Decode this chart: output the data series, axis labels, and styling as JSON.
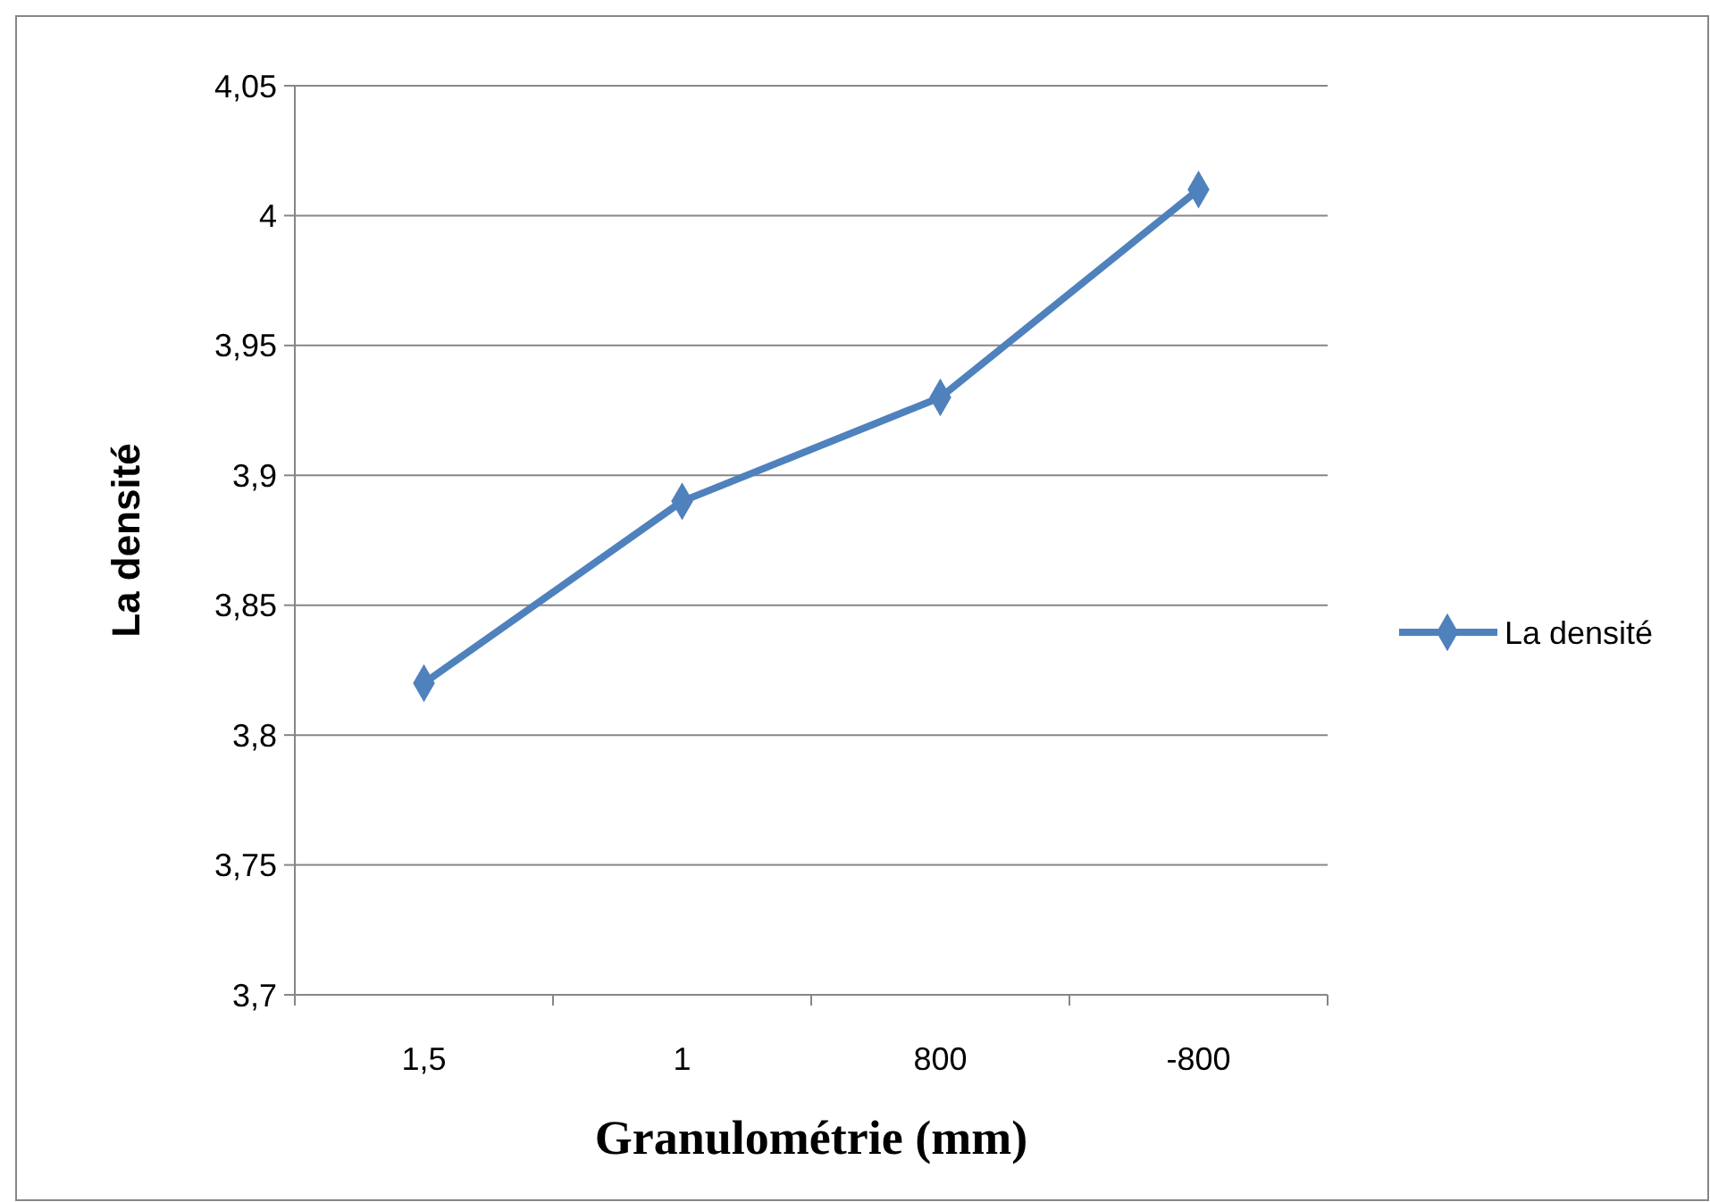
{
  "chart_data": {
    "type": "line",
    "xlabel": "Granulométrie (mm)",
    "ylabel": "La densité",
    "categories": [
      "1,5",
      "1",
      "800",
      "-800"
    ],
    "series": [
      {
        "name": "La densité",
        "color": "#4f81bd",
        "values": [
          3.82,
          3.89,
          3.93,
          4.01
        ]
      }
    ],
    "ylim": [
      3.7,
      4.05
    ],
    "yticks": [
      {
        "value": 3.7,
        "label": "3,7"
      },
      {
        "value": 3.75,
        "label": "3,75"
      },
      {
        "value": 3.8,
        "label": "3,8"
      },
      {
        "value": 3.85,
        "label": "3,85"
      },
      {
        "value": 3.9,
        "label": "3,9"
      },
      {
        "value": 3.95,
        "label": "3,95"
      },
      {
        "value": 4,
        "label": "4"
      },
      {
        "value": 4.05,
        "label": "4,05"
      }
    ],
    "grid": "y",
    "legend": "right",
    "marker": "diamond",
    "line_style": "solid"
  }
}
